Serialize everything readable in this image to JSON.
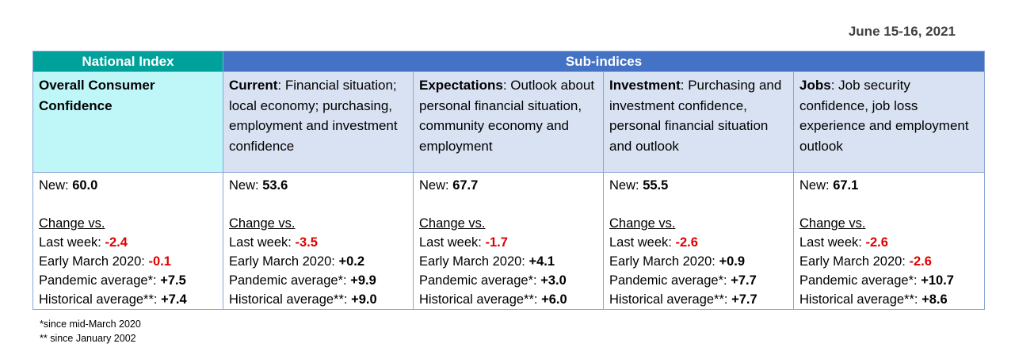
{
  "date": "June 15-16, 2021",
  "headers": {
    "national": "National Index",
    "sub": "Sub-indices"
  },
  "columns": [
    {
      "label": "Overall Consumer Confidence",
      "desc": "",
      "new": "60.0",
      "change_heading": "Change vs.",
      "last_week": "-2.4",
      "early_march": "-0.1",
      "pandemic_avg": "+7.5",
      "historical_avg": "+7.4"
    },
    {
      "label": "Current",
      "desc": ":  Financial situation; local economy; purchasing, employment and investment confidence",
      "new": "53.6",
      "change_heading": "Change vs.",
      "last_week": "-3.5",
      "early_march": "+0.2",
      "pandemic_avg": "+9.9",
      "historical_avg": "+9.0"
    },
    {
      "label": "Expectations",
      "desc": ":  Outlook about personal financial situation, community economy and employment",
      "new": "67.7",
      "change_heading": "Change vs.",
      "last_week": "-1.7",
      "early_march": "+4.1",
      "pandemic_avg": "+3.0",
      "historical_avg": "+6.0"
    },
    {
      "label": "Investment",
      "desc": ": Purchasing and investment confidence, personal financial situation and outlook",
      "new": "55.5",
      "change_heading": "Change vs.",
      "last_week": "-2.6",
      "early_march": "+0.9",
      "pandemic_avg": "+7.7",
      "historical_avg": "+7.7"
    },
    {
      "label": "Jobs",
      "desc": ": Job security confidence, job loss experience  and employment outlook",
      "new": "67.1",
      "change_heading": "Change vs.",
      "last_week": "-2.6",
      "early_march": "-2.6",
      "pandemic_avg": "+10.7",
      "historical_avg": "+8.6"
    }
  ],
  "row_labels": {
    "new": "New: ",
    "last_week": "Last week: ",
    "early_march": "Early March 2020: ",
    "pandemic_avg": "Pandemic average*: ",
    "historical_avg": "Historical average**: "
  },
  "footnotes": {
    "pandemic": "*since mid-March 2020",
    "historical": "** since January 2002"
  },
  "colors": {
    "national_header": "#00a19a",
    "sub_header": "#4472c4",
    "national_bg": "#bff7f9",
    "sub_bg": "#d9e2f3",
    "negative": "#e00000"
  }
}
